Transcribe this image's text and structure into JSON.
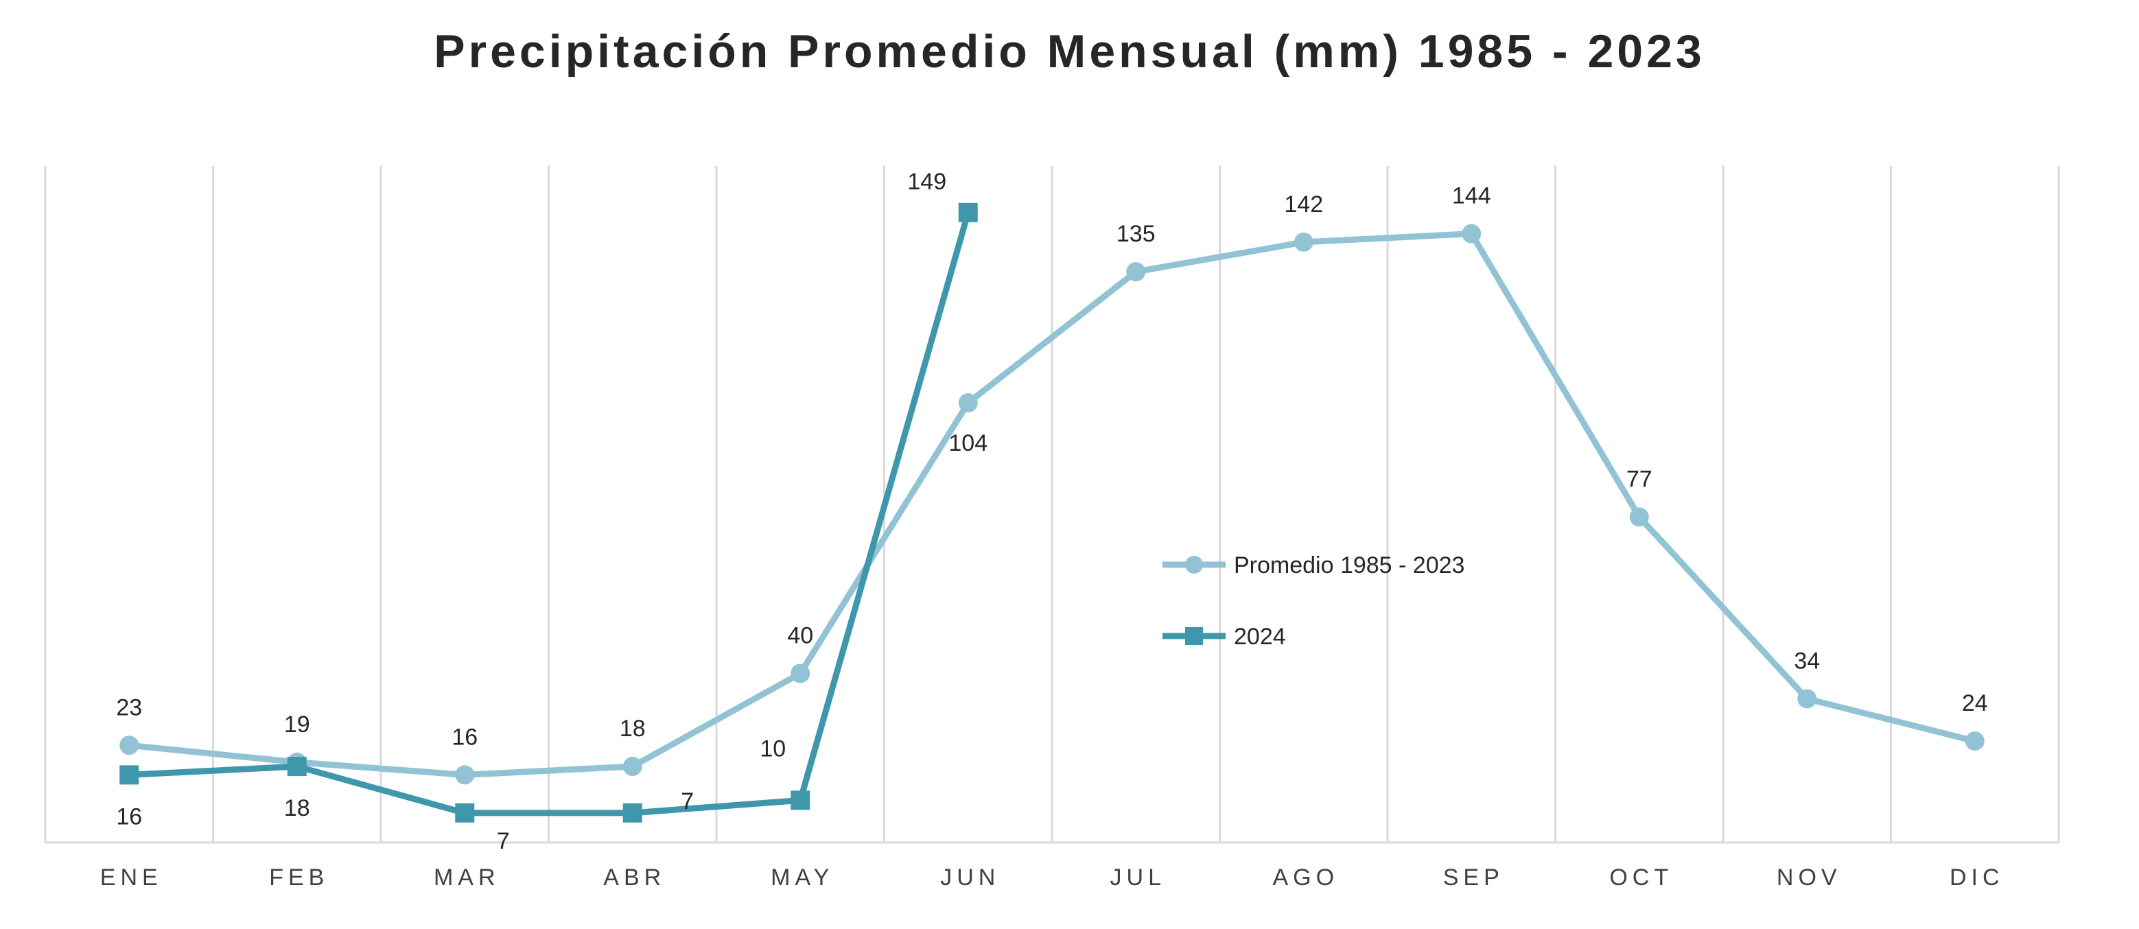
{
  "chart_data": {
    "type": "line",
    "title": "Precipitación Promedio Mensual (mm) 1985 - 2023",
    "categories": [
      "ENE",
      "FEB",
      "MAR",
      "ABR",
      "MAY",
      "JUN",
      "JUL",
      "AGO",
      "SEP",
      "OCT",
      "NOV",
      "DIC"
    ],
    "series": [
      {
        "name": "Promedio 1985 - 2023",
        "values": [
          23,
          19,
          16,
          18,
          40,
          104,
          135,
          142,
          144,
          77,
          34,
          24
        ],
        "color": "#92c3d4",
        "marker": "circle"
      },
      {
        "name": "2024",
        "values": [
          16,
          18,
          7,
          7,
          10,
          149,
          null,
          null,
          null,
          null,
          null,
          null
        ],
        "color": "#3f97ab",
        "marker": "square"
      }
    ],
    "ylim": [
      0,
      160
    ],
    "grid": "vertical",
    "legend_position": "center"
  }
}
